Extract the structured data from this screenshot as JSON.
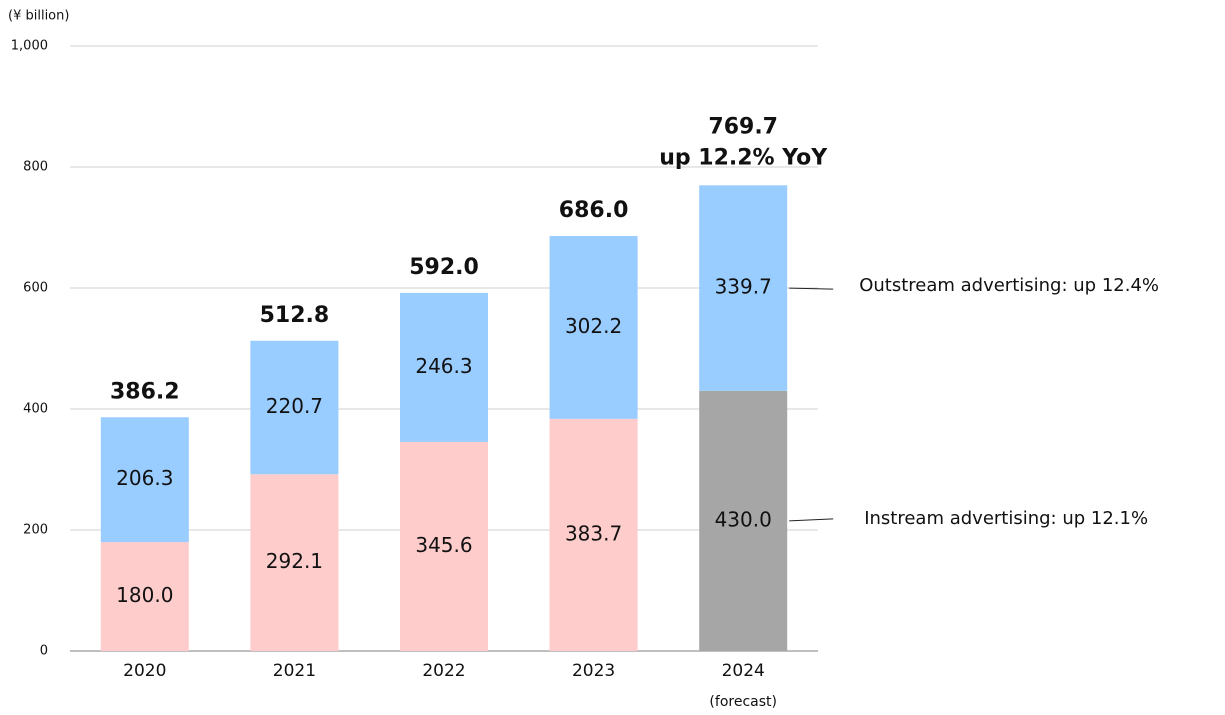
{
  "chart_data": {
    "type": "stacked-bar",
    "unit_label": "(¥ billion)",
    "categories": [
      "2020",
      "2021",
      "2022",
      "2023",
      "2024"
    ],
    "forecast_label": "(forecast)",
    "series": [
      {
        "label": "Instream advertising: up 12.1%",
        "colors": [
          "#ffcccc",
          "#ffcccc",
          "#ffcccc",
          "#ffcccc",
          "#a6a6a6"
        ],
        "values": [
          180.0,
          292.1,
          345.6,
          383.7,
          430.0
        ],
        "value_labels": [
          "180.0",
          "292.1",
          "345.6",
          "383.7",
          "430.0"
        ]
      },
      {
        "label": "Outstream advertising: up 12.4%",
        "color": "#99ccff",
        "values": [
          206.3,
          220.7,
          246.3,
          302.2,
          339.7
        ],
        "value_labels": [
          "206.3",
          "220.7",
          "246.3",
          "302.2",
          "339.7"
        ]
      }
    ],
    "totals": [
      386.2,
      512.8,
      592.0,
      686.0,
      769.7
    ],
    "total_labels": [
      "386.2",
      "512.8",
      "592.0",
      "686.0",
      "769.7"
    ],
    "last_total_note": "up 12.2% YoY",
    "ylim": [
      0,
      1000
    ],
    "yticks": [
      0,
      200,
      400,
      600,
      800,
      {
        "value": 1000,
        "label": "1,000"
      }
    ],
    "grid": true
  }
}
